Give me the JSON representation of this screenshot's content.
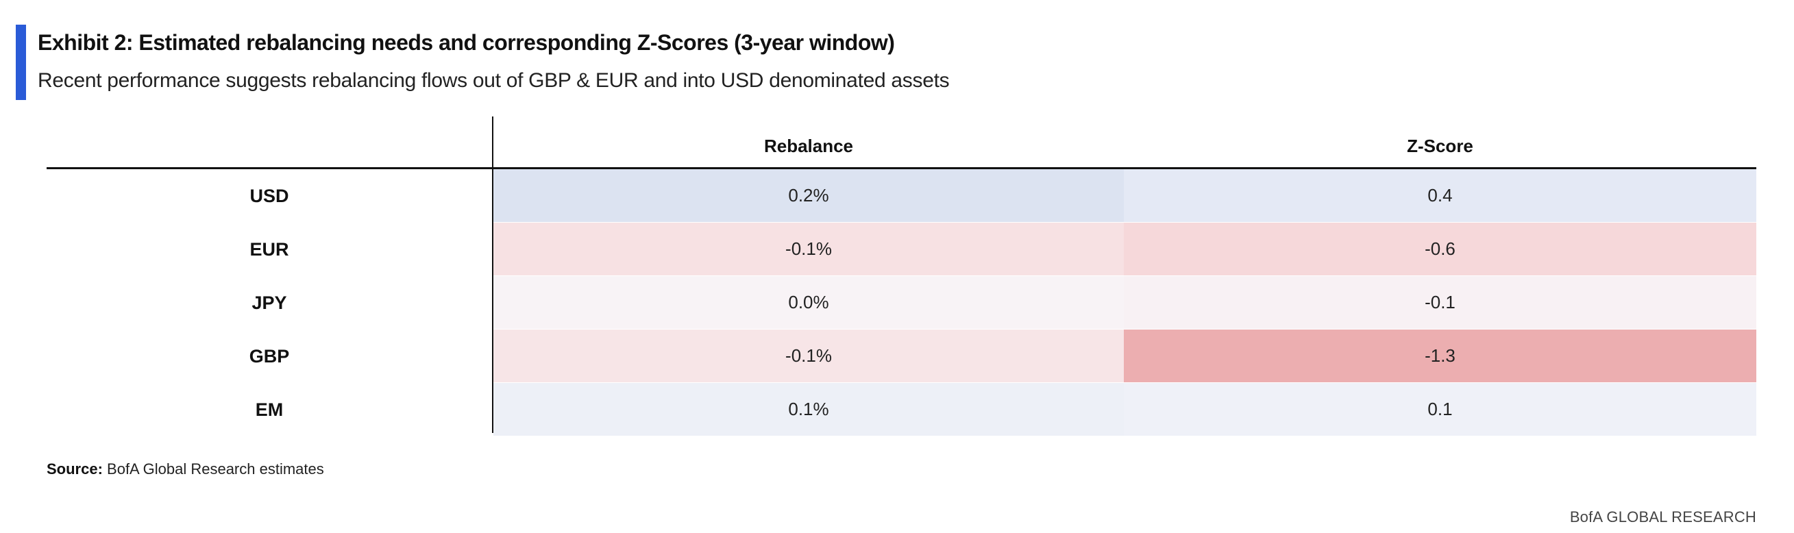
{
  "exhibit": {
    "title": "Exhibit 2: Estimated rebalancing needs and corresponding Z-Scores (3-year window)",
    "subtitle": "Recent performance suggests rebalancing flows out of GBP & EUR and into USD denominated assets"
  },
  "table": {
    "headers": [
      "",
      "Rebalance",
      "Z-Score"
    ],
    "rows": [
      {
        "label": "USD",
        "rebalance": "0.2%",
        "zscore": "0.4",
        "rebalance_color": "#dce3f1",
        "zscore_color": "#e4e9f5"
      },
      {
        "label": "EUR",
        "rebalance": "-0.1%",
        "zscore": "-0.6",
        "rebalance_color": "#f7e1e3",
        "zscore_color": "#f6d8da"
      },
      {
        "label": "JPY",
        "rebalance": "0.0%",
        "zscore": "-0.1",
        "rebalance_color": "#f8f3f6",
        "zscore_color": "#f8f1f4"
      },
      {
        "label": "GBP",
        "rebalance": "-0.1%",
        "zscore": "-1.3",
        "rebalance_color": "#f7e5e7",
        "zscore_color": "#ecaeb0"
      },
      {
        "label": "EM",
        "rebalance": "0.1%",
        "zscore": "0.1",
        "rebalance_color": "#edf0f7",
        "zscore_color": "#eff1f8"
      }
    ]
  },
  "footer": {
    "source_label": "Source:",
    "source_text": " BofA Global Research estimates",
    "brand": "BofA GLOBAL RESEARCH"
  },
  "colors": {
    "accent": "#2a5bd7"
  }
}
